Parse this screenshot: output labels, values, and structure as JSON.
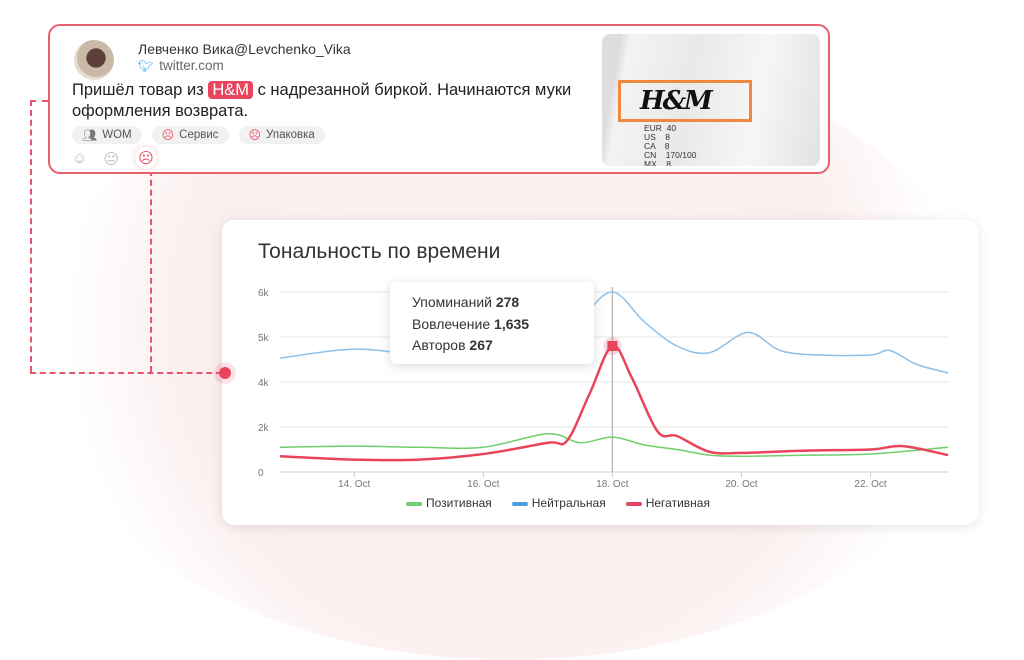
{
  "tweet": {
    "author": "Левченко Вика@Levchenko_Vika",
    "source": "twitter.com",
    "text_before": "Пришёл товар из ",
    "brand": "H&M",
    "text_after": " с надрезанной биркой. Начинаются муки оформления возврата.",
    "tags": [
      {
        "icon": "users-icon",
        "label": "WOM"
      },
      {
        "icon": "sad-face-icon",
        "label": "Сервис"
      },
      {
        "icon": "sad-face-icon",
        "label": "Упаковка"
      }
    ],
    "sentiment_selected": "negative",
    "photo": {
      "logo": "H&M",
      "label_lines": "EUR  40\nUS    8\nCA    8\nCN    170/100\nMX    8"
    }
  },
  "colors": {
    "accent": "#e8455c",
    "positive": "#6fcf6a",
    "neutral": "#8fc0e8",
    "negative": "#e8455c"
  },
  "chart_data": {
    "type": "line",
    "title": "Тональность по времени",
    "y_ticks": [
      0,
      2000,
      4000,
      5000,
      6000
    ],
    "y_tick_labels": [
      "0",
      "2k",
      "4k",
      "5k",
      "6k"
    ],
    "x_ticks": [
      14,
      16,
      18,
      20,
      22
    ],
    "x_tick_labels": [
      "14. Oct",
      "16. Oct",
      "18. Oct",
      "20. Oct",
      "22. Oct"
    ],
    "xlim": [
      12.85,
      23.2
    ],
    "grid": true,
    "legend_position": "bottom",
    "series": [
      {
        "name": "Позитивная",
        "color": "#6fcf6a",
        "x": [
          12.85,
          14,
          15,
          16,
          17,
          17.5,
          18,
          18.5,
          19,
          19.5,
          20,
          21,
          22,
          23.2
        ],
        "y": [
          1100,
          1150,
          1100,
          1100,
          1700,
          1300,
          1550,
          1200,
          1000,
          750,
          700,
          750,
          800,
          1100
        ]
      },
      {
        "name": "Нейтральная",
        "color": "#8fc0e8",
        "x": [
          12.85,
          14,
          15,
          16,
          17,
          17.5,
          18,
          18.5,
          19,
          19.5,
          20.1,
          20.6,
          21.2,
          22,
          22.3,
          22.7,
          23.2
        ],
        "y": [
          4530,
          4730,
          4600,
          4550,
          4900,
          5400,
          6000,
          5330,
          4800,
          4650,
          5100,
          4700,
          4600,
          4600,
          4700,
          4400,
          4200
        ]
      },
      {
        "name": "Негативная",
        "color": "#e8455c",
        "x": [
          12.85,
          14,
          15,
          16,
          17,
          17.3,
          17.65,
          18,
          18.3,
          18.7,
          19,
          19.5,
          20,
          21,
          22,
          22.5,
          23.2
        ],
        "y": [
          700,
          550,
          550,
          800,
          1300,
          1400,
          3500,
          4800,
          4100,
          1800,
          1600,
          900,
          850,
          950,
          1000,
          1150,
          750
        ]
      }
    ],
    "highlight_x": 18,
    "tooltip": [
      {
        "label": "Упоминаний",
        "value": "278"
      },
      {
        "label": "Вовлечение",
        "value": "1,635"
      },
      {
        "label": "Авторов",
        "value": "267"
      }
    ]
  }
}
